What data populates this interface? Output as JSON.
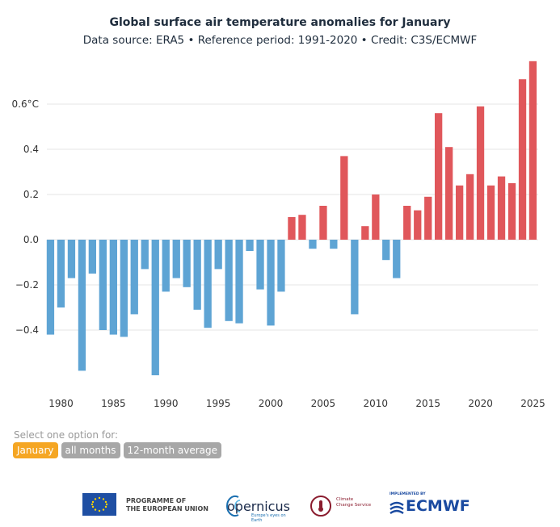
{
  "header": {
    "title": "Global surface air temperature anomalies for January",
    "subtitle": "Data source: ERA5 • Reference period: 1991-2020 • Credit: C3S/ECMWF"
  },
  "colors": {
    "positive": "#e0575b",
    "negative": "#5ea4d4",
    "grid": "#e6e6e6"
  },
  "chart_data": {
    "type": "bar",
    "title": "Global surface air temperature anomalies for January",
    "subtitle": "Data source: ERA5 • Reference period: 1991-2020 • Credit: C3S/ECMWF",
    "x": [
      1979,
      1980,
      1981,
      1982,
      1983,
      1984,
      1985,
      1986,
      1987,
      1988,
      1989,
      1990,
      1991,
      1992,
      1993,
      1994,
      1995,
      1996,
      1997,
      1998,
      1999,
      2000,
      2001,
      2002,
      2003,
      2004,
      2005,
      2006,
      2007,
      2008,
      2009,
      2010,
      2011,
      2012,
      2013,
      2014,
      2015,
      2016,
      2017,
      2018,
      2019,
      2020,
      2021,
      2022,
      2023,
      2024,
      2025
    ],
    "values": [
      -0.42,
      -0.3,
      -0.17,
      -0.58,
      -0.15,
      -0.4,
      -0.42,
      -0.43,
      -0.33,
      -0.13,
      -0.6,
      -0.23,
      -0.17,
      -0.21,
      -0.31,
      -0.39,
      -0.13,
      -0.36,
      -0.37,
      -0.05,
      -0.22,
      -0.38,
      -0.23,
      0.1,
      0.11,
      -0.04,
      0.15,
      -0.04,
      0.37,
      -0.33,
      0.06,
      0.2,
      -0.09,
      -0.17,
      0.15,
      0.13,
      0.19,
      0.56,
      0.41,
      0.24,
      0.29,
      0.59,
      0.24,
      0.28,
      0.25,
      0.71,
      0.79
    ],
    "xticks": [
      1980,
      1985,
      1990,
      1995,
      2000,
      2005,
      2010,
      2015,
      2020,
      2025
    ],
    "yticks": [
      {
        "value": 0.6,
        "label": "0.6°C"
      },
      {
        "value": 0.4,
        "label": "0.4"
      },
      {
        "value": 0.2,
        "label": "0.2"
      },
      {
        "value": 0.0,
        "label": "0.0"
      },
      {
        "value": -0.2,
        "label": "−0.2"
      },
      {
        "value": -0.4,
        "label": "−0.4"
      }
    ],
    "ylim": [
      -0.65,
      0.8
    ],
    "grid": true
  },
  "controls": {
    "label": "Select one option for:",
    "options": [
      {
        "label": "January",
        "active": true
      },
      {
        "label": "all months",
        "active": false
      },
      {
        "label": "12-month average",
        "active": false
      }
    ]
  },
  "footer": {
    "eu_text_1": "PROGRAMME OF",
    "eu_text_2": "THE EUROPEAN UNION",
    "copernicus": "opernicus",
    "copernicus_sub": "Europe's eyes on Earth",
    "c3s_1": "Climate",
    "c3s_2": "Change Service",
    "ecmwf_small": "IMPLEMENTED BY",
    "ecmwf": "ECMWF"
  }
}
